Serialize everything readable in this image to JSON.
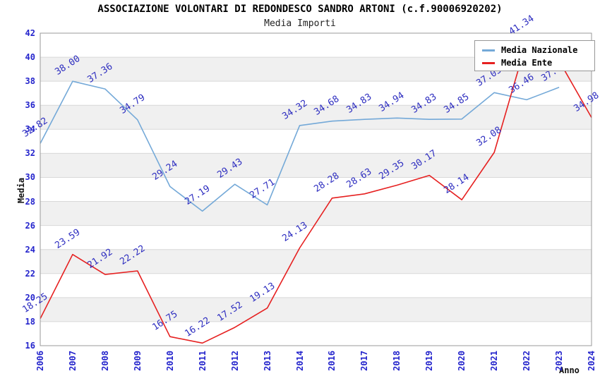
{
  "header": {
    "title": "ASSOCIAZIONE VOLONTARI DI REDONDESCO SANDRO ARTONI (c.f.90006920202)",
    "subtitle": "Media Importi"
  },
  "axes": {
    "y_title": "Media",
    "x_title": "Anno"
  },
  "legend": {
    "position": "top-right",
    "items": [
      {
        "label": "Media Nazionale",
        "color": "#74a9d8"
      },
      {
        "label": "Media Ente",
        "color": "#e62020"
      }
    ]
  },
  "colors": {
    "tick_label": "#2424cc",
    "point_label": "#2e2ec0",
    "band_gray": "#f0f0f0",
    "gridline": "#d8d8d8",
    "plot_border": "#9a9a9a",
    "blue_line": "#74a9d8",
    "red_line": "#e62020"
  },
  "chart_data": {
    "type": "line",
    "title": "ASSOCIAZIONE VOLONTARI DI REDONDESCO SANDRO ARTONI (c.f.90006920202)",
    "subtitle": "Media Importi",
    "xlabel": "Anno",
    "ylabel": "Media",
    "ylim": [
      16,
      42
    ],
    "ytick_step": 2,
    "grid": true,
    "alternating_bands": true,
    "legend_position": "top-right",
    "categories": [
      "2006",
      "2007",
      "2008",
      "2009",
      "2010",
      "2011",
      "2012",
      "2013",
      "2014",
      "2016",
      "2017",
      "2018",
      "2019",
      "2020",
      "2021",
      "2022",
      "2023",
      "2024"
    ],
    "series": [
      {
        "name": "Media Nazionale",
        "color": "#74a9d8",
        "values": [
          32.82,
          38.0,
          37.36,
          34.79,
          29.24,
          27.19,
          29.43,
          27.71,
          34.32,
          34.68,
          34.83,
          34.94,
          34.83,
          34.85,
          37.05,
          36.46,
          37.49,
          null
        ],
        "labels": [
          "32.82",
          "38.00",
          "37.36",
          "34.79",
          "29.24",
          "27.19",
          "29.43",
          "27.71",
          "34.32",
          "34.68",
          "34.83",
          "34.94",
          "34.83",
          "34.85",
          "37.05",
          "36.46",
          "37.49",
          null
        ]
      },
      {
        "name": "Media Ente",
        "color": "#e62020",
        "values": [
          18.25,
          23.59,
          21.92,
          22.22,
          16.75,
          16.22,
          17.52,
          19.13,
          24.13,
          28.28,
          28.63,
          29.35,
          30.17,
          28.14,
          32.08,
          41.34,
          39.7,
          34.98
        ],
        "labels": [
          "18.25",
          "23.59",
          "21.92",
          "22.22",
          "16.75",
          "16.22",
          "17.52",
          "19.13",
          "24.13",
          "28.28",
          "28.63",
          "29.35",
          "30.17",
          "28.14",
          "32.08",
          "41.34",
          null,
          "34.98"
        ]
      }
    ]
  }
}
